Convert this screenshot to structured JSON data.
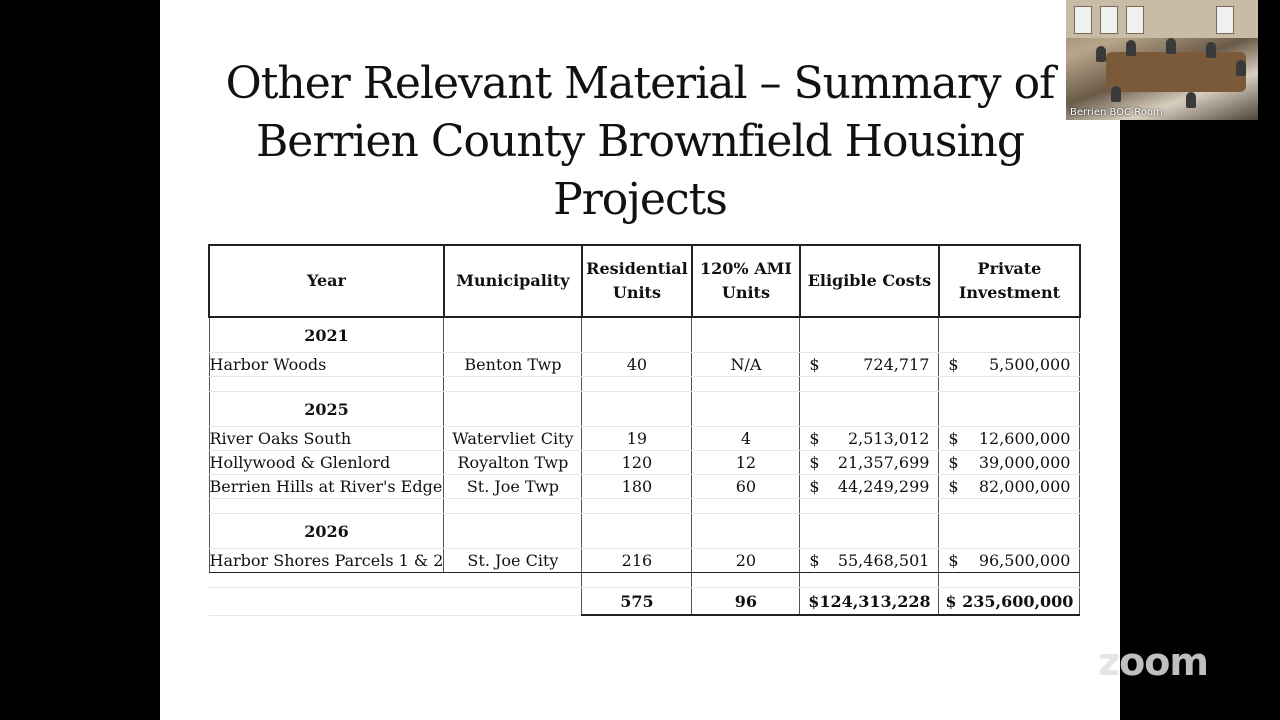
{
  "slide": {
    "title_lines": [
      "Other Relevant Material – Summary of",
      "Berrien County Brownfield Housing",
      "Projects"
    ]
  },
  "table": {
    "headers": {
      "year": "Year",
      "municipality": "Municipality",
      "residential_units": [
        "Residential",
        "Units"
      ],
      "ami_units": [
        "120% AMI",
        "Units"
      ],
      "eligible_costs": "Eligible Costs",
      "private_investment": [
        "Private",
        "Investment"
      ]
    },
    "currency_symbol": "$",
    "groups": [
      {
        "year": "2021",
        "rows": [
          {
            "project": "Harbor Woods",
            "municipality": "Benton Twp",
            "residential": "40",
            "ami": "N/A",
            "eligible": "724,717",
            "private": "5,500,000"
          }
        ]
      },
      {
        "year": "2025",
        "rows": [
          {
            "project": "River Oaks South",
            "municipality": "Watervliet City",
            "residential": "19",
            "ami": "4",
            "eligible": "2,513,012",
            "private": "12,600,000"
          },
          {
            "project": "Hollywood & Glenlord",
            "municipality": "Royalton Twp",
            "residential": "120",
            "ami": "12",
            "eligible": "21,357,699",
            "private": "39,000,000"
          },
          {
            "project": "Berrien Hills at River's Edge",
            "municipality": "St. Joe Twp",
            "residential": "180",
            "ami": "60",
            "eligible": "44,249,299",
            "private": "82,000,000"
          }
        ]
      },
      {
        "year": "2026",
        "rows": [
          {
            "project": "Harbor Shores Parcels 1 & 2",
            "municipality": "St. Joe City",
            "residential": "216",
            "ami": "20",
            "eligible": "55,468,501",
            "private": "96,500,000"
          }
        ]
      }
    ],
    "totals": {
      "residential": "575",
      "ami": "96",
      "eligible": "$124,313,228",
      "private": "$ 235,600,000"
    }
  },
  "video_thumbnail": {
    "label": "Berrien BOC Room"
  },
  "brand": {
    "logo_text": "zoom"
  }
}
